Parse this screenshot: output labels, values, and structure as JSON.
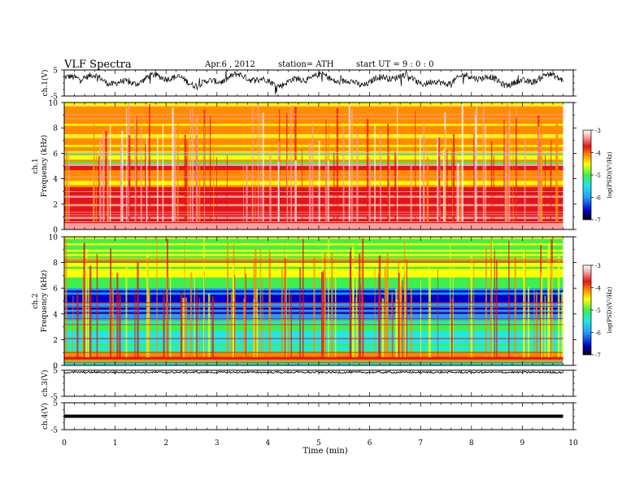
{
  "header": {
    "title": "VLF  Spectra",
    "date": "Apr.6  , 2012",
    "station": "station= ATH",
    "start": "start  UT  =   9  : 0  : 0"
  },
  "colors": {
    "spectrum_scale": [
      "#000000",
      "#0000c8",
      "#1ea0ff",
      "#22e6e6",
      "#3cf050",
      "#ffff00",
      "#ff8c00",
      "#e61414",
      "#f5a0a0",
      "#ffffff"
    ],
    "trace": "#000000",
    "frame": "#000000"
  },
  "chart_data": [
    {
      "type": "line",
      "panel": "ch1-waveform",
      "ylabel": "ch.1(V)",
      "ylim": [
        -5,
        5
      ],
      "yticks": [
        "5",
        "-5"
      ],
      "x_range_min": [
        0,
        9.8
      ],
      "description_level": "noisy waveform fluctuating mostly between -2 and 4 V"
    },
    {
      "type": "heatmap",
      "panel": "ch1-spectrogram",
      "ylabel": "ch.1\nFrequency  (kHz)",
      "ylim": [
        0,
        10
      ],
      "yticks": [
        "0",
        "2",
        "4",
        "6",
        "8",
        "10"
      ],
      "colorbar": {
        "label": "log(PSD)(V²/Hz)",
        "ticks": [
          "-3",
          "-4",
          "-5",
          "-6",
          "-7"
        ],
        "range": [
          -7,
          -3
        ]
      },
      "bands_khz": [
        {
          "from": 0,
          "to": 0.5,
          "level": -3.6
        },
        {
          "from": 0.5,
          "to": 3.3,
          "level": -3.9
        },
        {
          "from": 3.3,
          "to": 4.6,
          "level": -4.6
        },
        {
          "from": 4.6,
          "to": 5.1,
          "level": -3.9
        },
        {
          "from": 5.1,
          "to": 7.0,
          "level": -4.8
        },
        {
          "from": 7.0,
          "to": 10.0,
          "level": -4.5
        }
      ]
    },
    {
      "type": "heatmap",
      "panel": "ch2-spectrogram",
      "ylabel": "ch.2\nFrequency  (kHz)",
      "ylim": [
        0,
        10
      ],
      "yticks": [
        "0",
        "2",
        "4",
        "6",
        "8",
        "10"
      ],
      "colorbar": {
        "label": "log(PSD)(V²/Hz)",
        "ticks": [
          "-3",
          "-4",
          "-5",
          "-6",
          "-7"
        ],
        "range": [
          -7,
          -3
        ]
      },
      "bands_khz": [
        {
          "from": 0,
          "to": 0.3,
          "level": -5.6
        },
        {
          "from": 0.3,
          "to": 1.0,
          "level": -4.2
        },
        {
          "from": 1.0,
          "to": 3.5,
          "level": -5.5
        },
        {
          "from": 3.5,
          "to": 6.0,
          "level": -6.1
        },
        {
          "from": 6.0,
          "to": 10.0,
          "level": -5.0
        }
      ]
    },
    {
      "type": "line",
      "panel": "ch3-waveform",
      "ylabel": "ch.3(V)",
      "ylim": [
        -5,
        5
      ],
      "yticks": [
        "5",
        "-5"
      ],
      "level": 4.2
    },
    {
      "type": "line",
      "panel": "ch4-waveform",
      "ylabel": "ch.4(V)",
      "ylim": [
        -5,
        5
      ],
      "yticks": [
        "5",
        "-5"
      ],
      "level": 0
    }
  ],
  "xaxis": {
    "label": "Time  (min)",
    "xlim": [
      0,
      10
    ],
    "ticks": [
      "0",
      "1",
      "2",
      "3",
      "4",
      "5",
      "6",
      "7",
      "8",
      "9",
      "10"
    ],
    "data_end": 9.8
  }
}
